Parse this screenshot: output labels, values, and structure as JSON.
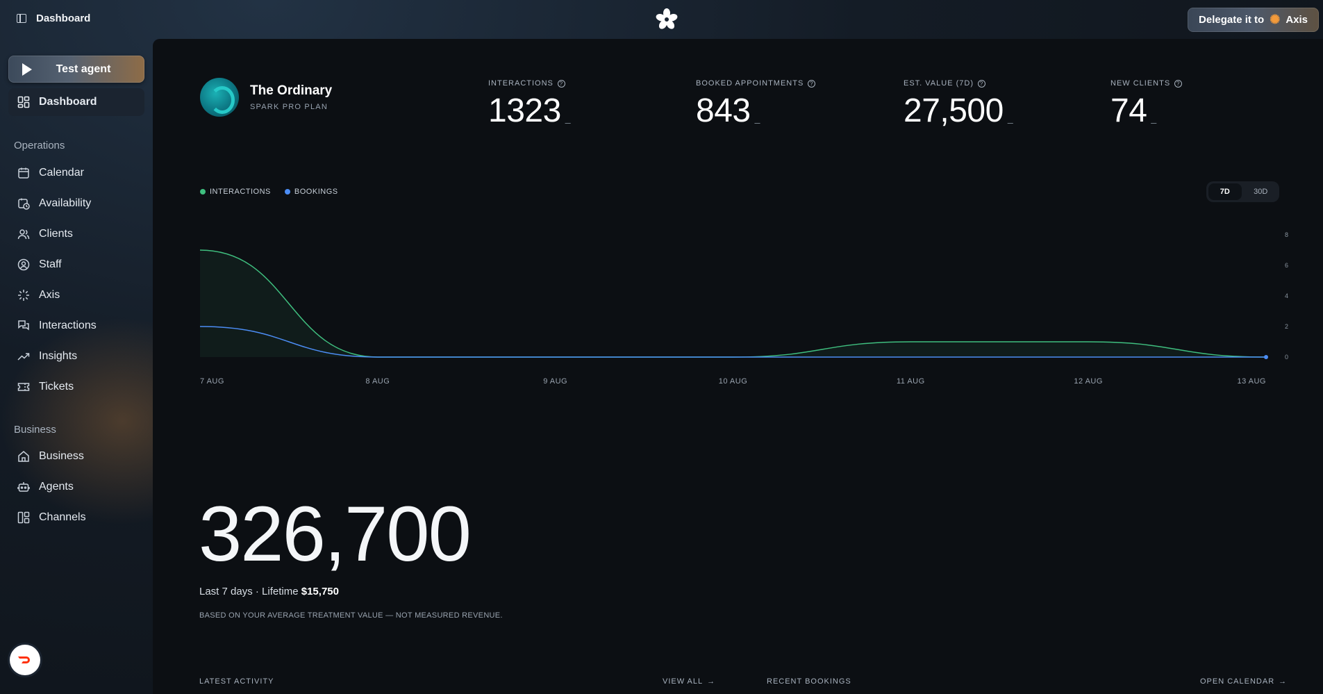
{
  "topbar": {
    "title": "Dashboard",
    "delegate_label": "Delegate it to",
    "delegate_target": "Axis"
  },
  "sidebar": {
    "test_agent": "Test agent",
    "dashboard": "Dashboard",
    "sections": [
      {
        "label": "Operations",
        "items": [
          {
            "label": "Calendar",
            "icon": "calendar-icon"
          },
          {
            "label": "Availability",
            "icon": "clock-calendar-icon"
          },
          {
            "label": "Clients",
            "icon": "users-icon"
          },
          {
            "label": "Staff",
            "icon": "user-circle-icon"
          },
          {
            "label": "Axis",
            "icon": "sparkle-icon"
          },
          {
            "label": "Interactions",
            "icon": "chat-icon"
          },
          {
            "label": "Insights",
            "icon": "trend-up-icon"
          },
          {
            "label": "Tickets",
            "icon": "ticket-icon"
          }
        ]
      },
      {
        "label": "Business",
        "items": [
          {
            "label": "Business",
            "icon": "home-icon"
          },
          {
            "label": "Agents",
            "icon": "robot-icon"
          },
          {
            "label": "Channels",
            "icon": "layout-icon"
          }
        ]
      }
    ]
  },
  "brand": {
    "name": "The Ordinary",
    "plan": "SPARK PRO PLAN"
  },
  "stats": [
    {
      "label": "INTERACTIONS",
      "value": "1323",
      "delta": "_"
    },
    {
      "label": "BOOKED APPOINTMENTS",
      "value": "843",
      "delta": "_"
    },
    {
      "label": "EST. VALUE (7D)",
      "value": "27,500",
      "delta": "_"
    },
    {
      "label": "NEW CLIENTS",
      "value": "74",
      "delta": "_"
    }
  ],
  "legend": {
    "interactions": "INTERACTIONS",
    "bookings": "BOOKINGS"
  },
  "range": {
    "seven": "7D",
    "thirty": "30D",
    "selected": "7D"
  },
  "chart_data": {
    "type": "line",
    "categories": [
      "7 AUG",
      "8 AUG",
      "9 AUG",
      "10 AUG",
      "11 AUG",
      "12 AUG",
      "13 AUG"
    ],
    "series": [
      {
        "name": "INTERACTIONS",
        "color": "#3fbf7f",
        "values": [
          7,
          0,
          0,
          0,
          1,
          1,
          0
        ]
      },
      {
        "name": "BOOKINGS",
        "color": "#4c8df5",
        "values": [
          2,
          0,
          0,
          0,
          0,
          0,
          0
        ]
      }
    ],
    "ylim": [
      0,
      8
    ],
    "yticks": [
      "0",
      "2",
      "4",
      "6",
      "8"
    ],
    "grid": false,
    "legend": "top-left"
  },
  "revenue": {
    "big": "326,700",
    "subline_prefix": "Last 7 days · Lifetime",
    "lifetime": "$15,750",
    "note": "BASED ON YOUR AVERAGE TREATMENT VALUE — NOT MEASURED REVENUE."
  },
  "footer": {
    "latest_activity": "LATEST ACTIVITY",
    "view_all": "VIEW ALL",
    "recent_bookings": "RECENT BOOKINGS",
    "open_calendar": "OPEN CALENDAR"
  }
}
